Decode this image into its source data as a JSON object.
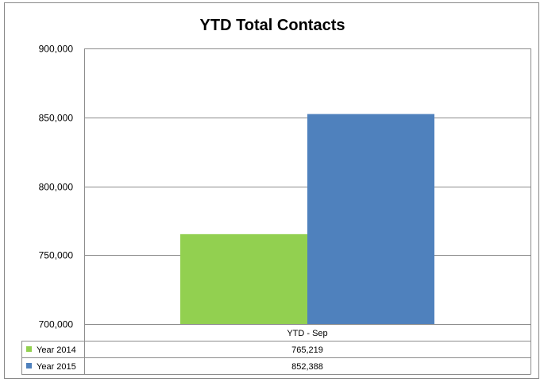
{
  "chart_data": {
    "type": "bar",
    "title": "YTD Total Contacts",
    "xlabel": "",
    "ylabel": "",
    "categories": [
      "YTD - Sep"
    ],
    "ylim": [
      700000,
      900000
    ],
    "yticks": [
      700000,
      750000,
      800000,
      850000,
      900000
    ],
    "ytick_labels": [
      "700,000",
      "750,000",
      "800,000",
      "850,000",
      "900,000"
    ],
    "grid": true,
    "legend": "data-table",
    "series": [
      {
        "name": "Year 2014",
        "values": [
          765219
        ],
        "value_labels": [
          "765,219"
        ],
        "color": "#92d050"
      },
      {
        "name": "Year 2015",
        "values": [
          852388
        ],
        "value_labels": [
          "852,388"
        ],
        "color": "#4f81bd"
      }
    ]
  }
}
